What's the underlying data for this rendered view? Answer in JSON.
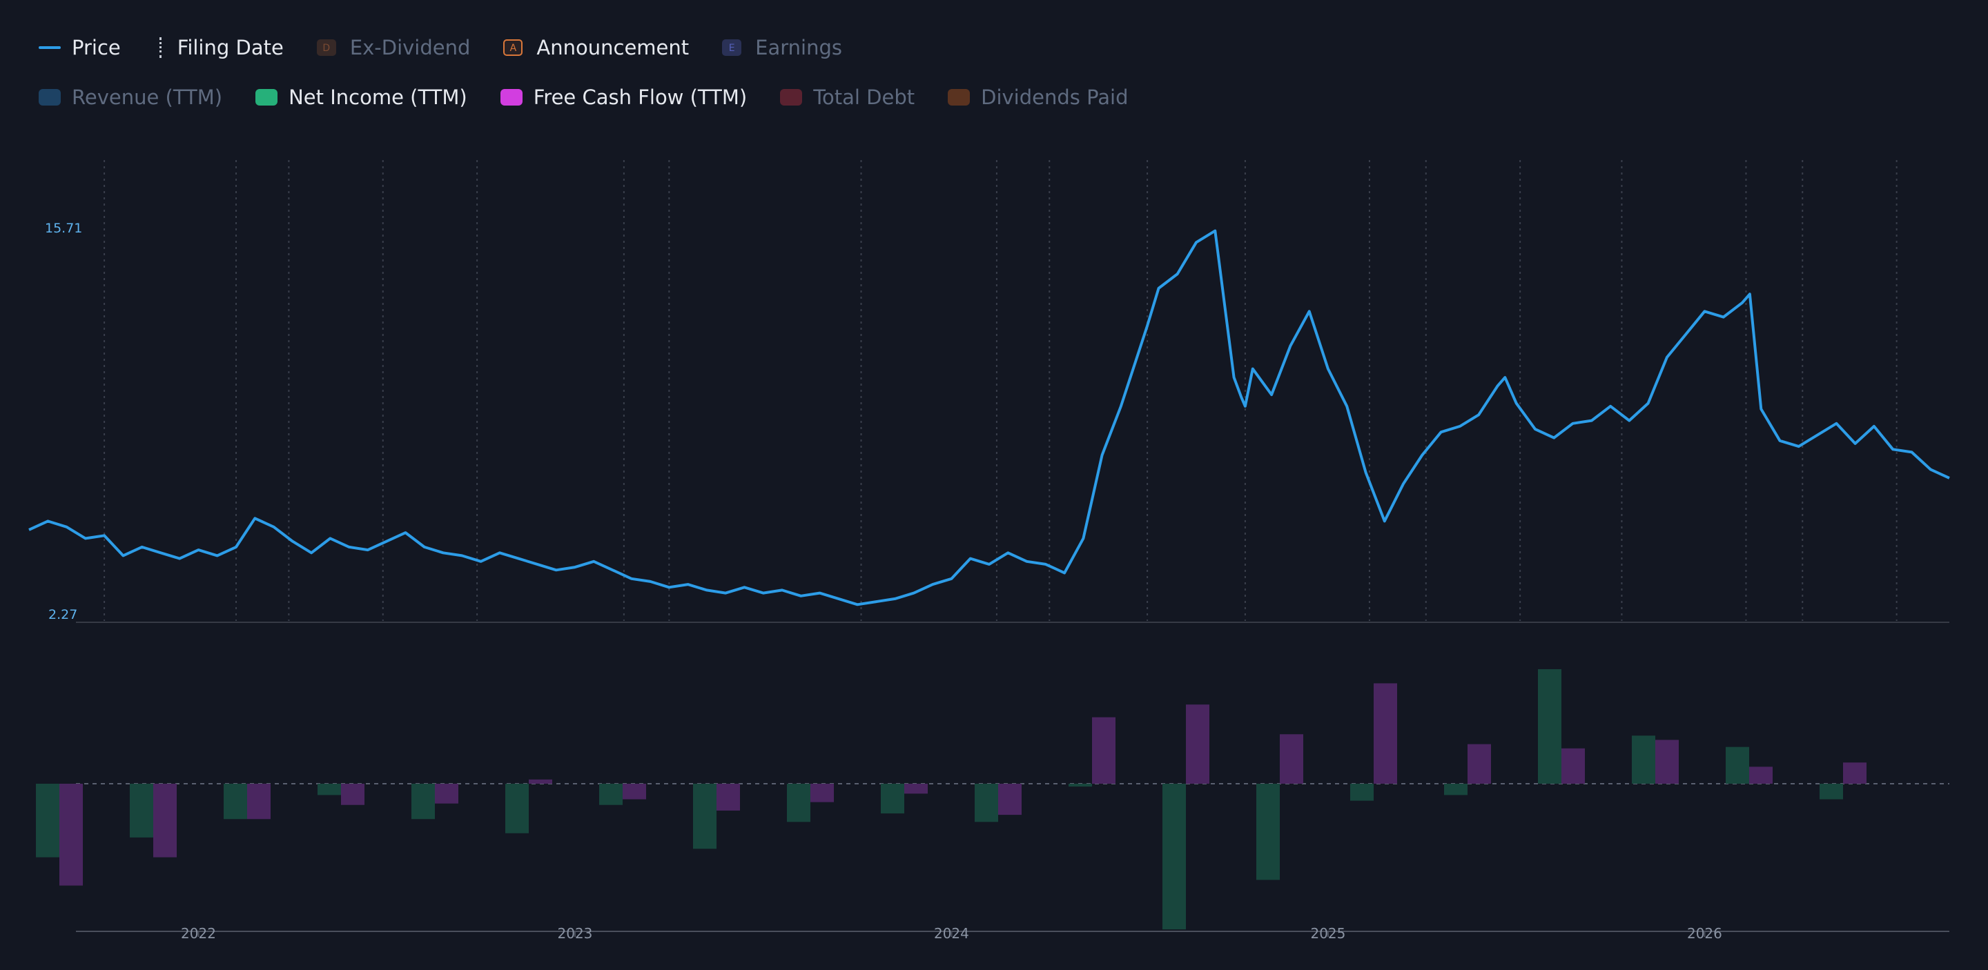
{
  "legend": {
    "row1": [
      {
        "key": "price",
        "label": "Price",
        "swatch": "line",
        "color": "#2d9de8",
        "active": true
      },
      {
        "key": "filing",
        "label": "Filing Date",
        "swatch": "dash",
        "color": "#c7ccd6",
        "active": true
      },
      {
        "key": "exdiv",
        "label": "Ex-Dividend",
        "swatch": "badge",
        "badge": "D",
        "color": "#7a4a32",
        "active": false
      },
      {
        "key": "announce",
        "label": "Announcement",
        "swatch": "badge",
        "badge": "A",
        "color": "#d9773a",
        "active": true
      },
      {
        "key": "earnings",
        "label": "Earnings",
        "swatch": "badge",
        "badge": "E",
        "color": "#5560b8",
        "active": false
      }
    ],
    "row2": [
      {
        "key": "revenue",
        "label": "Revenue (TTM)",
        "color": "#1d4264",
        "active": false
      },
      {
        "key": "netincome",
        "label": "Net Income (TTM)",
        "color": "#26b07a",
        "active": true
      },
      {
        "key": "fcf",
        "label": "Free Cash Flow (TTM)",
        "color": "#d23ee0",
        "active": true
      },
      {
        "key": "debt",
        "label": "Total Debt",
        "color": "#5a2230",
        "active": false
      },
      {
        "key": "dividends",
        "label": "Dividends Paid",
        "color": "#5a3320",
        "active": false
      }
    ]
  },
  "colors": {
    "price": "#2d9de8",
    "net_income_bar": "#18463d",
    "fcf_bar": "#4a2660",
    "grid": "#3a3f4c",
    "axis": "#363a45"
  },
  "chart_data": [
    {
      "type": "line",
      "series_name": "Price",
      "y_ticks": [
        "15.71",
        "2.27"
      ],
      "ylim": [
        2.27,
        15.71
      ],
      "xlim": [
        2021.6,
        2026.7
      ],
      "filing_dates": [
        2021.8,
        2022.15,
        2022.29,
        2022.54,
        2022.79,
        2023.18,
        2023.3,
        2023.81,
        2024.17,
        2024.31,
        2024.57,
        2024.83,
        2025.16,
        2025.31,
        2025.56,
        2025.83,
        2026.16,
        2026.31,
        2026.56
      ],
      "x": [
        2021.6,
        2021.65,
        2021.7,
        2021.75,
        2021.8,
        2021.85,
        2021.9,
        2021.95,
        2022.0,
        2022.05,
        2022.1,
        2022.15,
        2022.2,
        2022.25,
        2022.3,
        2022.35,
        2022.4,
        2022.45,
        2022.5,
        2022.55,
        2022.6,
        2022.65,
        2022.7,
        2022.75,
        2022.8,
        2022.85,
        2022.9,
        2022.95,
        2023.0,
        2023.05,
        2023.1,
        2023.15,
        2023.2,
        2023.25,
        2023.3,
        2023.35,
        2023.4,
        2023.45,
        2023.5,
        2023.55,
        2023.6,
        2023.65,
        2023.7,
        2023.75,
        2023.8,
        2023.85,
        2023.9,
        2023.95,
        2024.0,
        2024.05,
        2024.1,
        2024.15,
        2024.2,
        2024.25,
        2024.3,
        2024.35,
        2024.4,
        2024.45,
        2024.5,
        2024.55,
        2024.57,
        2024.6,
        2024.65,
        2024.7,
        2024.75,
        2024.8,
        2024.82,
        2024.83,
        2024.85,
        2024.9,
        2024.95,
        2025.0,
        2025.05,
        2025.1,
        2025.15,
        2025.2,
        2025.25,
        2025.3,
        2025.35,
        2025.4,
        2025.45,
        2025.5,
        2025.52,
        2025.55,
        2025.6,
        2025.65,
        2025.7,
        2025.75,
        2025.8,
        2025.85,
        2025.9,
        2025.95,
        2026.0,
        2026.05,
        2026.1,
        2026.15,
        2026.17,
        2026.2,
        2026.25,
        2026.3,
        2026.35,
        2026.4,
        2026.45,
        2026.5,
        2026.55,
        2026.6,
        2026.65,
        2026.7
      ],
      "y": [
        5.2,
        5.5,
        5.3,
        4.9,
        5.0,
        4.3,
        4.6,
        4.4,
        4.2,
        4.5,
        4.3,
        4.6,
        5.6,
        5.3,
        4.8,
        4.4,
        4.9,
        4.6,
        4.5,
        4.8,
        5.1,
        4.6,
        4.4,
        4.3,
        4.1,
        4.4,
        4.2,
        4.0,
        3.8,
        3.9,
        4.1,
        3.8,
        3.5,
        3.4,
        3.2,
        3.3,
        3.1,
        3.0,
        3.2,
        3.0,
        3.1,
        2.9,
        3.0,
        2.8,
        2.6,
        2.7,
        2.8,
        3.0,
        3.3,
        3.5,
        4.2,
        4.0,
        4.4,
        4.1,
        4.0,
        3.7,
        4.9,
        7.8,
        9.5,
        11.5,
        12.3,
        13.6,
        14.1,
        15.2,
        15.6,
        10.5,
        9.8,
        9.5,
        10.8,
        9.9,
        11.6,
        12.8,
        10.8,
        9.5,
        7.2,
        5.5,
        6.8,
        7.8,
        8.6,
        8.8,
        9.2,
        10.2,
        10.5,
        9.6,
        8.7,
        8.4,
        8.9,
        9.0,
        9.5,
        9.0,
        9.6,
        11.2,
        12.0,
        12.8,
        12.6,
        13.1,
        13.4,
        9.4,
        8.3,
        8.1,
        8.5,
        8.9,
        8.2,
        8.8,
        8.0,
        7.9,
        7.3,
        7.0
      ]
    },
    {
      "type": "bar",
      "series": [
        {
          "name": "Net Income (TTM)",
          "values": [
            -52,
            -38,
            -25,
            -8,
            -25,
            -35,
            -15,
            -46,
            -27,
            -21,
            -27,
            -2,
            -103,
            -68,
            -12,
            -8,
            81,
            34,
            26,
            -11
          ]
        },
        {
          "name": "Free Cash Flow (TTM)",
          "values": [
            -72,
            -52,
            -25,
            -15,
            -14,
            3,
            -11,
            -19,
            -13,
            -7,
            -22,
            47,
            56,
            35,
            71,
            28,
            25,
            31,
            12,
            15
          ]
        }
      ],
      "x_ticks": [
        "2022",
        "2023",
        "2024",
        "2025",
        "2026"
      ]
    }
  ]
}
